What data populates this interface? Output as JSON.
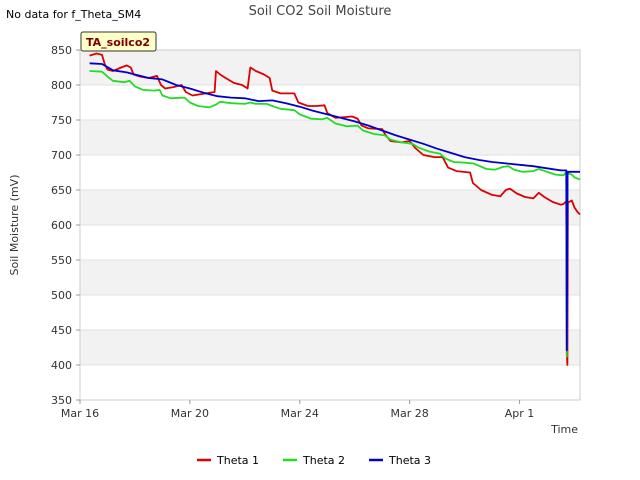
{
  "chart_data": {
    "type": "line",
    "title": "Soil CO2 Soil Moisture",
    "note": "No data for f_Theta_SM4",
    "tag": "TA_soilco2",
    "xlabel": "Time",
    "ylabel": "Soil Moisture (mV)",
    "ylim": [
      350,
      850
    ],
    "yticks": [
      350,
      400,
      450,
      500,
      550,
      600,
      650,
      700,
      750,
      800,
      850
    ],
    "xlim": [
      0,
      18.2
    ],
    "xticks": [
      {
        "value": 0,
        "label": "Mar 16"
      },
      {
        "value": 4,
        "label": "Mar 20"
      },
      {
        "value": 8,
        "label": "Mar 24"
      },
      {
        "value": 12,
        "label": "Mar 28"
      },
      {
        "value": 16,
        "label": "Apr 1"
      }
    ],
    "legend_position": "bottom",
    "series": [
      {
        "name": "Theta 1",
        "color": "#dd0000",
        "points": [
          [
            0.35,
            842
          ],
          [
            0.6,
            845
          ],
          [
            0.8,
            843
          ],
          [
            0.9,
            830
          ],
          [
            1.0,
            822
          ],
          [
            1.2,
            820
          ],
          [
            1.5,
            825
          ],
          [
            1.7,
            828
          ],
          [
            1.85,
            825
          ],
          [
            1.95,
            815
          ],
          [
            2.2,
            812
          ],
          [
            2.5,
            810
          ],
          [
            2.8,
            813
          ],
          [
            2.95,
            800
          ],
          [
            3.1,
            795
          ],
          [
            3.4,
            797
          ],
          [
            3.7,
            800
          ],
          [
            3.85,
            790
          ],
          [
            4.1,
            785
          ],
          [
            4.4,
            787
          ],
          [
            4.9,
            790
          ],
          [
            4.95,
            820
          ],
          [
            5.1,
            815
          ],
          [
            5.3,
            810
          ],
          [
            5.6,
            803
          ],
          [
            5.9,
            800
          ],
          [
            6.1,
            795
          ],
          [
            6.2,
            825
          ],
          [
            6.4,
            820
          ],
          [
            6.7,
            815
          ],
          [
            6.9,
            810
          ],
          [
            7.0,
            792
          ],
          [
            7.3,
            788
          ],
          [
            7.8,
            788
          ],
          [
            7.95,
            775
          ],
          [
            8.3,
            770
          ],
          [
            8.6,
            770
          ],
          [
            8.9,
            771
          ],
          [
            9.0,
            760
          ],
          [
            9.3,
            753
          ],
          [
            9.9,
            755
          ],
          [
            10.1,
            752
          ],
          [
            10.25,
            742
          ],
          [
            10.5,
            738
          ],
          [
            11.0,
            737
          ],
          [
            11.1,
            730
          ],
          [
            11.3,
            720
          ],
          [
            11.7,
            718
          ],
          [
            12.0,
            720
          ],
          [
            12.2,
            710
          ],
          [
            12.5,
            700
          ],
          [
            12.9,
            697
          ],
          [
            13.2,
            697
          ],
          [
            13.4,
            682
          ],
          [
            13.7,
            677
          ],
          [
            14.2,
            675
          ],
          [
            14.3,
            660
          ],
          [
            14.6,
            650
          ],
          [
            15.0,
            643
          ],
          [
            15.3,
            641
          ],
          [
            15.5,
            650
          ],
          [
            15.65,
            652
          ],
          [
            15.9,
            645
          ],
          [
            16.2,
            640
          ],
          [
            16.5,
            638
          ],
          [
            16.7,
            646
          ],
          [
            16.9,
            640
          ],
          [
            17.2,
            633
          ],
          [
            17.5,
            629
          ],
          [
            17.6,
            630
          ],
          [
            17.7,
            634
          ],
          [
            17.72,
            415
          ],
          [
            17.74,
            400
          ],
          [
            17.76,
            632
          ],
          [
            17.9,
            635
          ],
          [
            18.0,
            625
          ],
          [
            18.1,
            619
          ],
          [
            18.2,
            615
          ]
        ]
      },
      {
        "name": "Theta 2",
        "color": "#22dd22",
        "points": [
          [
            0.35,
            820
          ],
          [
            0.8,
            819
          ],
          [
            1.0,
            812
          ],
          [
            1.2,
            806
          ],
          [
            1.6,
            804
          ],
          [
            1.8,
            806
          ],
          [
            2.0,
            798
          ],
          [
            2.3,
            793
          ],
          [
            2.7,
            792
          ],
          [
            2.9,
            793
          ],
          [
            3.0,
            785
          ],
          [
            3.3,
            781
          ],
          [
            3.8,
            782
          ],
          [
            4.0,
            775
          ],
          [
            4.3,
            770
          ],
          [
            4.7,
            768
          ],
          [
            4.95,
            772
          ],
          [
            5.1,
            776
          ],
          [
            5.5,
            774
          ],
          [
            6.0,
            773
          ],
          [
            6.2,
            775
          ],
          [
            6.4,
            773
          ],
          [
            6.8,
            773
          ],
          [
            7.0,
            770
          ],
          [
            7.3,
            766
          ],
          [
            7.8,
            764
          ],
          [
            8.0,
            758
          ],
          [
            8.4,
            752
          ],
          [
            8.8,
            751
          ],
          [
            9.0,
            753
          ],
          [
            9.3,
            745
          ],
          [
            9.7,
            741
          ],
          [
            10.1,
            742
          ],
          [
            10.3,
            735
          ],
          [
            10.7,
            730
          ],
          [
            11.1,
            728
          ],
          [
            11.3,
            722
          ],
          [
            11.7,
            718
          ],
          [
            12.1,
            716
          ],
          [
            12.3,
            711
          ],
          [
            12.7,
            705
          ],
          [
            13.1,
            702
          ],
          [
            13.3,
            695
          ],
          [
            13.6,
            690
          ],
          [
            14.0,
            689
          ],
          [
            14.3,
            688
          ],
          [
            14.5,
            685
          ],
          [
            14.8,
            680
          ],
          [
            15.1,
            679
          ],
          [
            15.4,
            683
          ],
          [
            15.6,
            684
          ],
          [
            15.8,
            679
          ],
          [
            16.1,
            676
          ],
          [
            16.5,
            677
          ],
          [
            16.7,
            680
          ],
          [
            17.0,
            676
          ],
          [
            17.3,
            672
          ],
          [
            17.6,
            671
          ],
          [
            17.7,
            676
          ],
          [
            17.72,
            412
          ],
          [
            17.75,
            674
          ],
          [
            17.9,
            672
          ],
          [
            18.0,
            668
          ],
          [
            18.2,
            665
          ]
        ]
      },
      {
        "name": "Theta 3",
        "color": "#0000cc",
        "points": [
          [
            0.35,
            831
          ],
          [
            0.8,
            830
          ],
          [
            1.2,
            821
          ],
          [
            1.7,
            818
          ],
          [
            2.0,
            815
          ],
          [
            2.5,
            810
          ],
          [
            3.0,
            808
          ],
          [
            3.5,
            800
          ],
          [
            4.0,
            795
          ],
          [
            4.5,
            789
          ],
          [
            5.0,
            784
          ],
          [
            5.5,
            782
          ],
          [
            6.0,
            781
          ],
          [
            6.5,
            777
          ],
          [
            7.0,
            778
          ],
          [
            7.5,
            774
          ],
          [
            8.0,
            769
          ],
          [
            8.5,
            763
          ],
          [
            9.0,
            758
          ],
          [
            9.5,
            753
          ],
          [
            10.0,
            748
          ],
          [
            10.5,
            742
          ],
          [
            11.0,
            735
          ],
          [
            11.5,
            728
          ],
          [
            12.0,
            722
          ],
          [
            12.5,
            716
          ],
          [
            13.0,
            709
          ],
          [
            13.5,
            703
          ],
          [
            14.0,
            697
          ],
          [
            14.5,
            693
          ],
          [
            15.0,
            690
          ],
          [
            15.5,
            688
          ],
          [
            16.0,
            686
          ],
          [
            16.5,
            684
          ],
          [
            17.0,
            681
          ],
          [
            17.5,
            678
          ],
          [
            17.7,
            678
          ],
          [
            17.72,
            421
          ],
          [
            17.75,
            676
          ],
          [
            18.2,
            676
          ]
        ]
      }
    ]
  }
}
